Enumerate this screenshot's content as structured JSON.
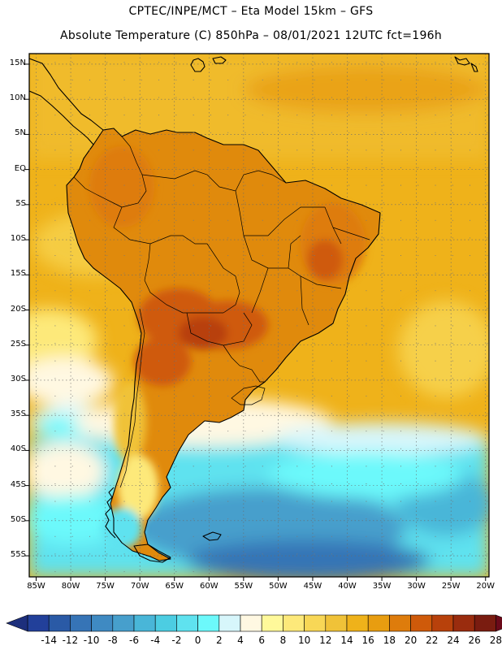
{
  "header": {
    "line1": "CPTEC/INPE/MCT –  Eta Model 15km – GFS",
    "line2": "Absolute Temperature (C) 850hPa – 08/01/2021 12UTC fct=196h"
  },
  "map": {
    "lat_labels": [
      "15N",
      "10N",
      "5N",
      "EQ",
      "5S",
      "10S",
      "15S",
      "20S",
      "25S",
      "30S",
      "35S",
      "40S",
      "45S",
      "50S",
      "55S"
    ],
    "lat_values": [
      15,
      10,
      5,
      0,
      -5,
      -10,
      -15,
      -20,
      -25,
      -30,
      -35,
      -40,
      -45,
      -50,
      -55
    ],
    "lon_labels": [
      "85W",
      "80W",
      "75W",
      "70W",
      "65W",
      "60W",
      "55W",
      "50W",
      "45W",
      "40W",
      "35W",
      "30W",
      "25W",
      "20W"
    ],
    "lon_values": [
      -85,
      -80,
      -75,
      -70,
      -65,
      -60,
      -55,
      -50,
      -45,
      -40,
      -35,
      -30,
      -25,
      -20
    ],
    "lat_range": [
      -58,
      16.5
    ],
    "lon_range": [
      -86,
      -19.5
    ],
    "field": "Absolute Temperature (C) 850hPa",
    "ocean_color": "#efb21a",
    "land_color": "#e08a0c"
  },
  "colorbar": {
    "labels": [
      "-14",
      "-12",
      "-10",
      "-8",
      "-6",
      "-4",
      "-2",
      "0",
      "2",
      "4",
      "6",
      "8",
      "10",
      "12",
      "14",
      "16",
      "18",
      "20",
      "22",
      "24",
      "26",
      "28"
    ],
    "colors": [
      "#22409a",
      "#2a5aa6",
      "#3674b6",
      "#3f8ac2",
      "#479fcc",
      "#49b6d8",
      "#4ccde2",
      "#5fe2ef",
      "#6cf9fb",
      "#d7f6fb",
      "#fff8e2",
      "#fff99a",
      "#fde97a",
      "#f8d756",
      "#f0c238",
      "#efb21a",
      "#e89d10",
      "#de7c0c",
      "#cf5a0a",
      "#b8410b",
      "#9a2c0e",
      "#7a1c10"
    ],
    "under_color": "#1d2f7c",
    "over_color": "#6b0a1a"
  }
}
